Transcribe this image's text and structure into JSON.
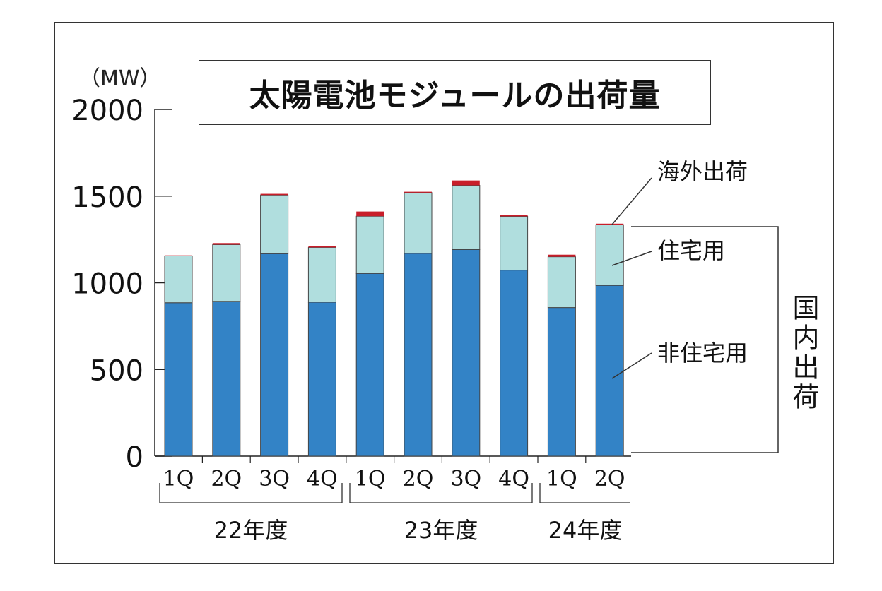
{
  "title": "太陽電池モジュールの出荷量",
  "unit": "（MW）",
  "annotations": {
    "export": "海外出荷",
    "residential": "住宅用",
    "non_residential": "非住宅用",
    "domestic": "国内出荷"
  },
  "fiscal_years": [
    "22年度",
    "23年度",
    "24年度"
  ],
  "colors": {
    "non_residential": "#3383c6",
    "residential": "#b0dede",
    "export": "#c81e2a"
  },
  "chart_data": {
    "type": "bar",
    "stacked": true,
    "title": "太陽電池モジュールの出荷量",
    "ylabel": "（MW）",
    "xlabel": "",
    "ylim": [
      0,
      2000
    ],
    "yticks": [
      "0",
      "500",
      "1000",
      "1500",
      "2000"
    ],
    "categories": [
      "1Q",
      "2Q",
      "3Q",
      "4Q",
      "1Q",
      "2Q",
      "3Q",
      "4Q",
      "1Q",
      "2Q"
    ],
    "groups": [
      {
        "label": "22年度",
        "categories": [
          "1Q",
          "2Q",
          "3Q",
          "4Q"
        ]
      },
      {
        "label": "23年度",
        "categories": [
          "1Q",
          "2Q",
          "3Q",
          "4Q"
        ]
      },
      {
        "label": "24年度",
        "categories": [
          "1Q",
          "2Q"
        ]
      }
    ],
    "series": [
      {
        "name": "非住宅用",
        "values": [
          885,
          893,
          1168,
          888,
          1054,
          1170,
          1192,
          1073,
          857,
          985
        ]
      },
      {
        "name": "住宅用",
        "values": [
          270,
          327,
          338,
          316,
          330,
          350,
          370,
          310,
          293,
          350
        ]
      },
      {
        "name": "海外出荷",
        "values": [
          3,
          9,
          7,
          9,
          27,
          5,
          28,
          9,
          12,
          6
        ]
      }
    ]
  }
}
